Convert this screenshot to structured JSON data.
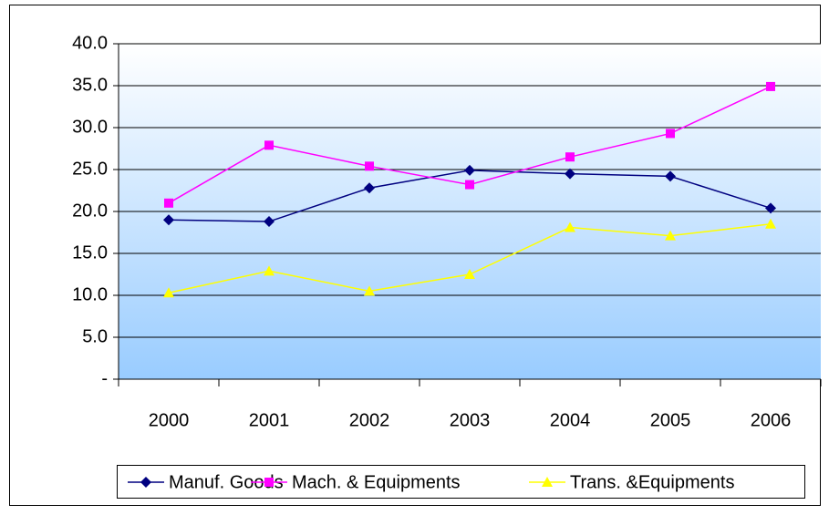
{
  "chart_data": {
    "type": "line",
    "categories": [
      "2000",
      "2001",
      "2002",
      "2003",
      "2004",
      "2005",
      "2006"
    ],
    "series": [
      {
        "name": "Manuf. Goods",
        "color": "#000080",
        "marker": "diamond",
        "values": [
          19.0,
          18.8,
          22.8,
          24.9,
          24.5,
          24.2,
          20.4
        ]
      },
      {
        "name": "Mach. & Equipments",
        "color": "#ff00ff",
        "marker": "square",
        "values": [
          21.0,
          27.9,
          25.4,
          23.2,
          26.5,
          29.3,
          34.9
        ]
      },
      {
        "name": "Trans. &Equipments",
        "color": "#ffff00",
        "marker": "triangle",
        "values": [
          10.3,
          12.9,
          10.5,
          12.5,
          18.1,
          17.1,
          18.5
        ]
      }
    ],
    "ylim": [
      0,
      40
    ],
    "yticks": [
      {
        "value": 0,
        "label": "-"
      },
      {
        "value": 5,
        "label": "5.0"
      },
      {
        "value": 10,
        "label": "10.0"
      },
      {
        "value": 15,
        "label": "15.0"
      },
      {
        "value": 20,
        "label": "20.0"
      },
      {
        "value": 25,
        "label": "25.0"
      },
      {
        "value": 30,
        "label": "30.0"
      },
      {
        "value": 35,
        "label": "35.0"
      },
      {
        "value": 40,
        "label": "40.0"
      }
    ],
    "grid": true,
    "legend": "bottom"
  }
}
